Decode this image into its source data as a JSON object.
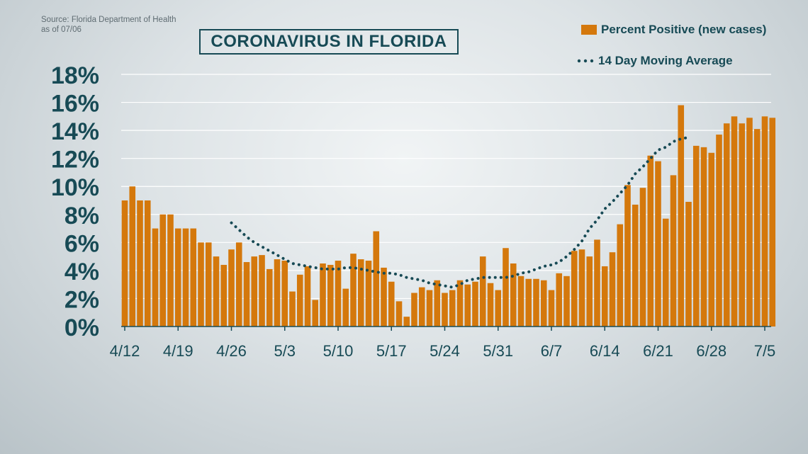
{
  "source": {
    "line1": "Source: Florida Department of Health",
    "line2": "as of 07/06"
  },
  "title": "CORONAVIRUS IN FLORIDA",
  "legend": {
    "bars": "Percent Positive (new cases)",
    "line": "14 Day Moving Average"
  },
  "colors": {
    "bar": "#d4780c",
    "line": "#174a55",
    "axis_text": "#174a55",
    "grid": "#ffffff"
  },
  "chart_data": {
    "type": "bar",
    "title": "CORONAVIRUS IN FLORIDA",
    "xlabel": "",
    "ylabel": "",
    "ylim": [
      0,
      18
    ],
    "y_ticks": [
      "0%",
      "2%",
      "4%",
      "6%",
      "8%",
      "10%",
      "12%",
      "14%",
      "16%",
      "18%"
    ],
    "x_tick_labels": [
      "4/12",
      "4/19",
      "4/26",
      "5/3",
      "5/10",
      "5/17",
      "5/24",
      "5/31",
      "6/7",
      "6/14",
      "6/21",
      "6/28",
      "7/5"
    ],
    "x_tick_day_index": [
      0,
      7,
      14,
      21,
      28,
      35,
      42,
      49,
      56,
      63,
      70,
      77,
      84
    ],
    "grid": true,
    "legend_position": "top-right",
    "series": [
      {
        "name": "Percent Positive (new cases)",
        "type": "bar",
        "values": [
          9.0,
          10.0,
          9.0,
          9.0,
          7.0,
          8.0,
          8.0,
          7.0,
          7.0,
          7.0,
          6.0,
          6.0,
          5.0,
          4.4,
          5.5,
          6.0,
          4.6,
          5.0,
          5.1,
          4.1,
          4.8,
          4.7,
          2.5,
          3.7,
          4.3,
          1.9,
          4.5,
          4.4,
          4.7,
          2.7,
          5.2,
          4.8,
          4.7,
          6.8,
          4.2,
          3.2,
          1.8,
          0.7,
          2.4,
          2.8,
          2.6,
          3.3,
          2.4,
          2.6,
          3.3,
          3.0,
          3.2,
          5.0,
          3.1,
          2.6,
          5.6,
          4.5,
          3.6,
          3.4,
          3.4,
          3.3,
          2.6,
          3.8,
          3.6,
          5.4,
          5.5,
          5.0,
          6.2,
          4.3,
          5.3,
          7.3,
          10.1,
          8.7,
          9.9,
          12.2,
          11.8,
          7.7,
          10.8,
          15.8,
          8.9,
          12.9,
          12.8,
          12.4,
          13.7,
          14.5,
          15.0,
          14.5,
          14.9,
          14.1,
          15.0,
          14.9
        ]
      },
      {
        "name": "14 Day Moving Average",
        "type": "line",
        "x_start_day_index": 14,
        "values": [
          7.4,
          6.9,
          6.4,
          6.0,
          5.7,
          5.4,
          5.1,
          4.8,
          4.5,
          4.4,
          4.3,
          4.2,
          4.1,
          4.1,
          4.1,
          4.2,
          4.2,
          4.1,
          4.0,
          3.9,
          3.8,
          3.8,
          3.7,
          3.5,
          3.4,
          3.3,
          3.1,
          3.0,
          2.9,
          2.8,
          3.0,
          3.3,
          3.4,
          3.5,
          3.5,
          3.5,
          3.5,
          3.6,
          3.8,
          3.9,
          4.1,
          4.3,
          4.4,
          4.6,
          5.0,
          5.5,
          6.1,
          7.0,
          7.6,
          8.4,
          8.9,
          9.5,
          10.1,
          10.9,
          11.4,
          12.0,
          12.6,
          12.8,
          13.2,
          13.4,
          13.5
        ]
      }
    ]
  }
}
